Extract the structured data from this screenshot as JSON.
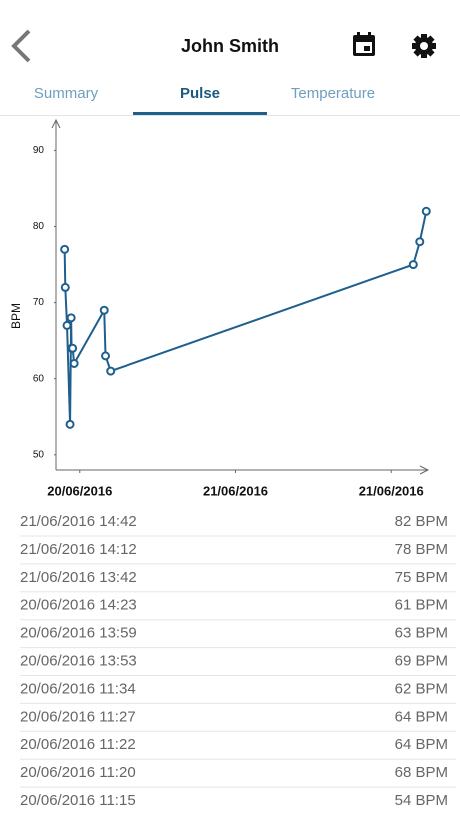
{
  "header": {
    "title": "John Smith"
  },
  "tabs": [
    "Summary",
    "Pulse",
    "Temperature"
  ],
  "active_tab": 1,
  "chart_data": {
    "type": "line",
    "y_label": "BPM",
    "color": "#1f5f8e",
    "x": [
      "2016-06-20T10:50",
      "2016-06-20T10:53",
      "2016-06-20T11:01",
      "2016-06-20T11:15",
      "2016-06-20T11:20",
      "2016-06-20T11:22",
      "2016-06-20T11:27",
      "2016-06-20T11:34",
      "2016-06-20T13:53",
      "2016-06-20T13:59",
      "2016-06-20T14:23",
      "2016-06-21T13:42",
      "2016-06-21T14:12",
      "2016-06-21T14:42"
    ],
    "values": [
      77,
      72,
      67,
      54,
      68,
      64,
      64,
      62,
      69,
      63,
      61,
      75,
      78,
      82
    ],
    "xlim": [
      "2016-06-20T10:10",
      "2016-06-21T14:50"
    ],
    "xticks": [
      {
        "value": "2016-06-20T12:00",
        "label": "20/06/2016"
      },
      {
        "value": "2016-06-21T00:00",
        "label": "21/06/2016"
      },
      {
        "value": "2016-06-21T12:00",
        "label": "21/06/2016"
      }
    ],
    "ylim": [
      48,
      94
    ],
    "yticks": [
      50,
      60,
      70,
      80,
      90
    ],
    "grid": false
  },
  "readings": {
    "times": [
      "21/06/2016 14:42",
      "21/06/2016 14:12",
      "21/06/2016 13:42",
      "20/06/2016 14:23",
      "20/06/2016 13:59",
      "20/06/2016 13:53",
      "20/06/2016 11:34",
      "20/06/2016 11:27",
      "20/06/2016 11:22",
      "20/06/2016 11:20",
      "20/06/2016 11:15"
    ],
    "values": [
      82,
      78,
      75,
      61,
      63,
      69,
      62,
      64,
      64,
      68,
      54
    ],
    "value_labels": [
      "82 BPM",
      "78 BPM",
      "75 BPM",
      "61 BPM",
      "63 BPM",
      "69 BPM",
      "62 BPM",
      "64 BPM",
      "64 BPM",
      "68 BPM",
      "54 BPM"
    ]
  }
}
